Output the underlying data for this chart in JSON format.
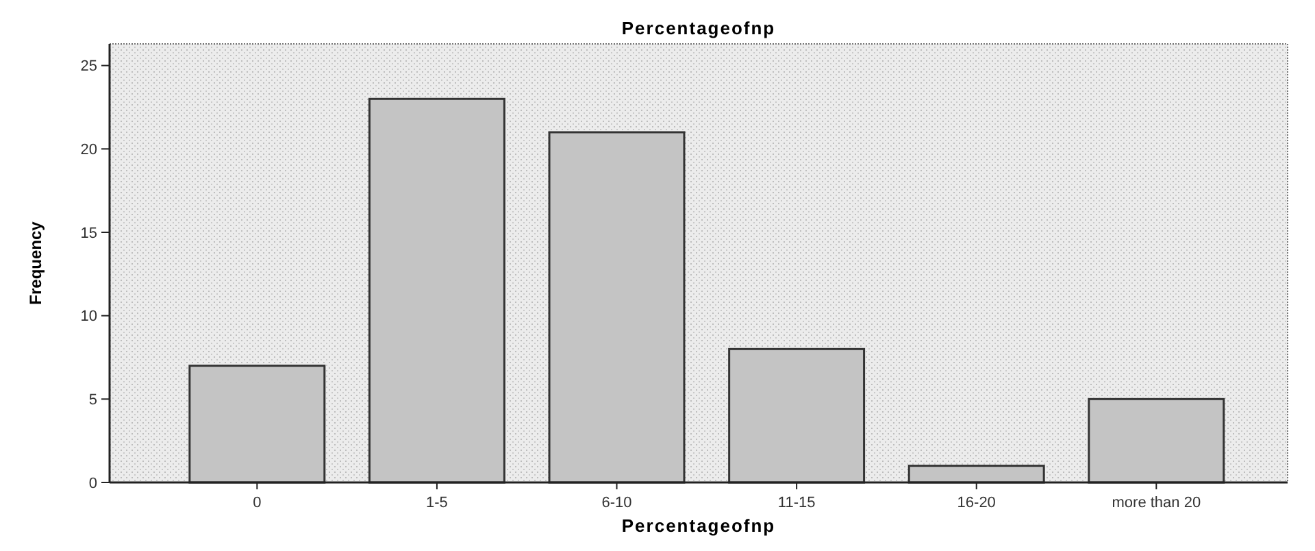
{
  "chart_data": {
    "type": "bar",
    "title": "Percentageofnp",
    "xlabel": "Percentageofnp",
    "ylabel": "Frequency",
    "categories": [
      "0",
      "1-5",
      "6-10",
      "11-15",
      "16-20",
      "more than 20"
    ],
    "values": [
      7,
      23,
      21,
      8,
      1,
      5
    ],
    "color": "#c4c4c4",
    "ylim": [
      0,
      26.3
    ],
    "yticks": [
      0,
      5,
      10,
      15,
      20,
      25
    ],
    "grid": false
  }
}
